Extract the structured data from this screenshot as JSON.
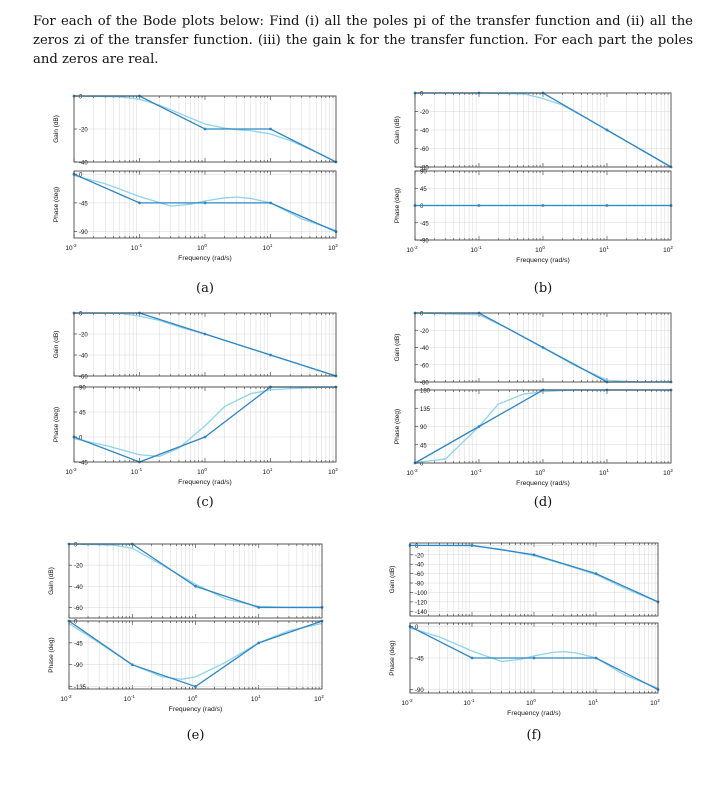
{
  "intro_text": "For each of the Bode plots below: Find (i) all the poles pi of the transfer function and (ii) all the zeros zi of the transfer function. (iii) the gain k for the transfer function. For each part the poles and zeros are real.",
  "colors": {
    "asymptote": "#2f86c4",
    "exact": "#8fd3ec",
    "frame": "#333333",
    "grid": "#d7d7d7"
  },
  "common": {
    "gain_ylabel": "Gain (dB)",
    "phase_ylabel": "Phase (deg)",
    "xlabel": "Frequency (rad/s)",
    "x_ticks": [
      "-2",
      "-1",
      "0",
      "1",
      "2"
    ]
  },
  "chart_data": [
    {
      "id": "a",
      "type": "line",
      "caption": "(a)",
      "x_scale": "log",
      "xlim": [
        0.01,
        100
      ],
      "gain": {
        "ylim": [
          -40,
          0
        ],
        "yticks": [
          0,
          -20,
          -40
        ],
        "asymptote": {
          "x": [
            0.01,
            0.1,
            1,
            10,
            100
          ],
          "y": [
            0,
            0,
            -20,
            -20,
            -40
          ]
        },
        "exact": {
          "x": [
            0.01,
            0.05,
            0.1,
            0.2,
            0.5,
            1,
            2,
            3.16,
            5,
            10,
            20,
            50,
            100
          ],
          "y": [
            0,
            -0.5,
            -2,
            -5.5,
            -12,
            -17,
            -19.5,
            -20.5,
            -21,
            -23,
            -27,
            -34,
            -40
          ]
        }
      },
      "phase": {
        "ylim": [
          -100,
          5
        ],
        "yticks": [
          0,
          -45,
          -90
        ],
        "asymptote": {
          "x": [
            0.01,
            0.1,
            1,
            10,
            100
          ],
          "y": [
            0,
            -45,
            -45,
            -45,
            -90
          ]
        },
        "exact": {
          "x": [
            0.01,
            0.03,
            0.1,
            0.3,
            0.6,
            1,
            2,
            3.16,
            5,
            10,
            30,
            100
          ],
          "y": [
            -2,
            -15,
            -35,
            -50,
            -47,
            -42,
            -37,
            -36,
            -38,
            -45,
            -70,
            -88
          ]
        }
      }
    },
    {
      "id": "b",
      "type": "line",
      "caption": "(b)",
      "x_scale": "log",
      "xlim": [
        0.01,
        100
      ],
      "gain": {
        "ylim": [
          -80,
          0
        ],
        "yticks": [
          0,
          -20,
          -40,
          -60,
          -80
        ],
        "asymptote": {
          "x": [
            0.01,
            0.1,
            1,
            10,
            100
          ],
          "y": [
            0,
            0,
            0,
            -40,
            -80
          ]
        },
        "exact": {
          "x": [
            0.01,
            0.1,
            0.5,
            1,
            2,
            5,
            10,
            100
          ],
          "y": [
            0,
            0,
            -1,
            -6,
            -13,
            -28,
            -40,
            -80
          ]
        }
      },
      "phase": {
        "ylim": [
          -90,
          90
        ],
        "yticks": [
          90,
          45,
          0,
          -45,
          -90
        ],
        "asymptote": {
          "x": [
            0.01,
            0.1,
            1,
            10,
            100
          ],
          "y": [
            0,
            0,
            0,
            0,
            0
          ]
        },
        "exact": {
          "x": [
            0.01,
            100
          ],
          "y": [
            0,
            0
          ]
        }
      }
    },
    {
      "id": "c",
      "type": "line",
      "caption": "(c)",
      "x_scale": "log",
      "xlim": [
        0.01,
        100
      ],
      "gain": {
        "ylim": [
          -60,
          0
        ],
        "yticks": [
          0,
          -20,
          -40,
          -60
        ],
        "asymptote": {
          "x": [
            0.01,
            0.1,
            1,
            10,
            100
          ],
          "y": [
            0,
            0,
            -20,
            -40,
            -60
          ]
        },
        "exact": {
          "x": [
            0.01,
            0.05,
            0.1,
            0.2,
            0.5,
            1,
            10,
            100
          ],
          "y": [
            0,
            -0.3,
            -3,
            -7,
            -15,
            -20,
            -40,
            -60
          ]
        }
      },
      "phase": {
        "ylim": [
          -45,
          90
        ],
        "yticks": [
          90,
          45,
          0,
          -45
        ],
        "asymptote": {
          "x": [
            0.01,
            0.1,
            1,
            10,
            100
          ],
          "y": [
            0,
            -45,
            0,
            90,
            90
          ]
        },
        "exact": {
          "x": [
            0.01,
            0.03,
            0.1,
            0.2,
            0.4,
            1,
            2,
            5,
            10,
            30,
            100
          ],
          "y": [
            -3,
            -15,
            -32,
            -35,
            -20,
            20,
            55,
            78,
            85,
            88,
            90
          ]
        }
      }
    },
    {
      "id": "d",
      "type": "line",
      "caption": "(d)",
      "x_scale": "log",
      "xlim": [
        0.01,
        100
      ],
      "gain": {
        "ylim": [
          -80,
          0
        ],
        "yticks": [
          0,
          -20,
          -40,
          -60,
          -80
        ],
        "asymptote": {
          "x": [
            0.01,
            0.1,
            1,
            10,
            100
          ],
          "y": [
            0,
            0,
            -40,
            -80,
            -80
          ]
        },
        "exact": {
          "x": [
            0.01,
            0.1,
            0.3,
            1,
            3,
            10,
            30,
            100
          ],
          "y": [
            0,
            -2,
            -19,
            -40,
            -60,
            -78,
            -80,
            -80
          ]
        }
      },
      "phase": {
        "ylim": [
          0,
          180
        ],
        "yticks": [
          180,
          135,
          90,
          45,
          0
        ],
        "asymptote": {
          "x": [
            0.01,
            0.1,
            1,
            10,
            100
          ],
          "y": [
            0,
            90,
            180,
            180,
            180
          ]
        },
        "exact": {
          "x": [
            0.01,
            0.03,
            0.1,
            0.2,
            0.5,
            1,
            3,
            10,
            100
          ],
          "y": [
            1,
            10,
            90,
            145,
            170,
            176,
            180,
            180,
            180
          ]
        }
      }
    },
    {
      "id": "e",
      "type": "line",
      "caption": "(e)",
      "x_scale": "log",
      "xlim": [
        0.01,
        100
      ],
      "gain": {
        "ylim": [
          -70,
          0
        ],
        "yticks": [
          0,
          -20,
          -40,
          -60
        ],
        "asymptote": {
          "x": [
            0.01,
            0.1,
            1,
            10,
            100
          ],
          "y": [
            0,
            0,
            -40,
            -60,
            -60
          ]
        },
        "exact": {
          "x": [
            0.01,
            0.05,
            0.1,
            0.3,
            1,
            3,
            10,
            30,
            100
          ],
          "y": [
            0,
            -1,
            -4,
            -20,
            -38,
            -52,
            -59,
            -60,
            -60
          ]
        }
      },
      "phase": {
        "ylim": [
          -140,
          0
        ],
        "yticks": [
          0,
          -45,
          -90,
          -135
        ],
        "asymptote": {
          "x": [
            0.01,
            0.1,
            1,
            10,
            100
          ],
          "y": [
            0,
            -90,
            -135,
            -45,
            0
          ]
        },
        "exact": {
          "x": [
            0.01,
            0.03,
            0.1,
            0.3,
            0.6,
            1,
            3,
            10,
            30,
            100
          ],
          "y": [
            -5,
            -45,
            -90,
            -115,
            -120,
            -115,
            -85,
            -45,
            -20,
            -5
          ]
        }
      }
    },
    {
      "id": "f",
      "type": "line",
      "caption": "(f)",
      "x_scale": "log",
      "xlim": [
        0.01,
        100
      ],
      "gain": {
        "ylim": [
          -150,
          5
        ],
        "yticks": [
          0,
          -20,
          -40,
          -60,
          -80,
          -100,
          -120,
          -140
        ],
        "asymptote": {
          "x": [
            0.01,
            0.1,
            1,
            10,
            100
          ],
          "y": [
            0,
            0,
            -20,
            -60,
            -120
          ]
        },
        "exact": {
          "x": [
            0.01,
            0.1,
            0.3,
            1,
            3,
            10,
            30,
            100
          ],
          "y": [
            0,
            -1,
            -8,
            -22,
            -40,
            -62,
            -92,
            -120
          ]
        }
      },
      "phase": {
        "ylim": [
          -95,
          5
        ],
        "yticks": [
          0,
          -45,
          -90
        ],
        "asymptote": {
          "x": [
            0.01,
            0.1,
            1,
            10,
            100
          ],
          "y": [
            0,
            -45,
            -45,
            -45,
            -90
          ]
        },
        "exact": {
          "x": [
            0.01,
            0.03,
            0.1,
            0.3,
            0.6,
            1,
            2,
            3.16,
            5,
            10,
            30,
            100
          ],
          "y": [
            -2,
            -15,
            -35,
            -50,
            -47,
            -42,
            -37,
            -36,
            -38,
            -45,
            -70,
            -88
          ]
        }
      }
    }
  ]
}
